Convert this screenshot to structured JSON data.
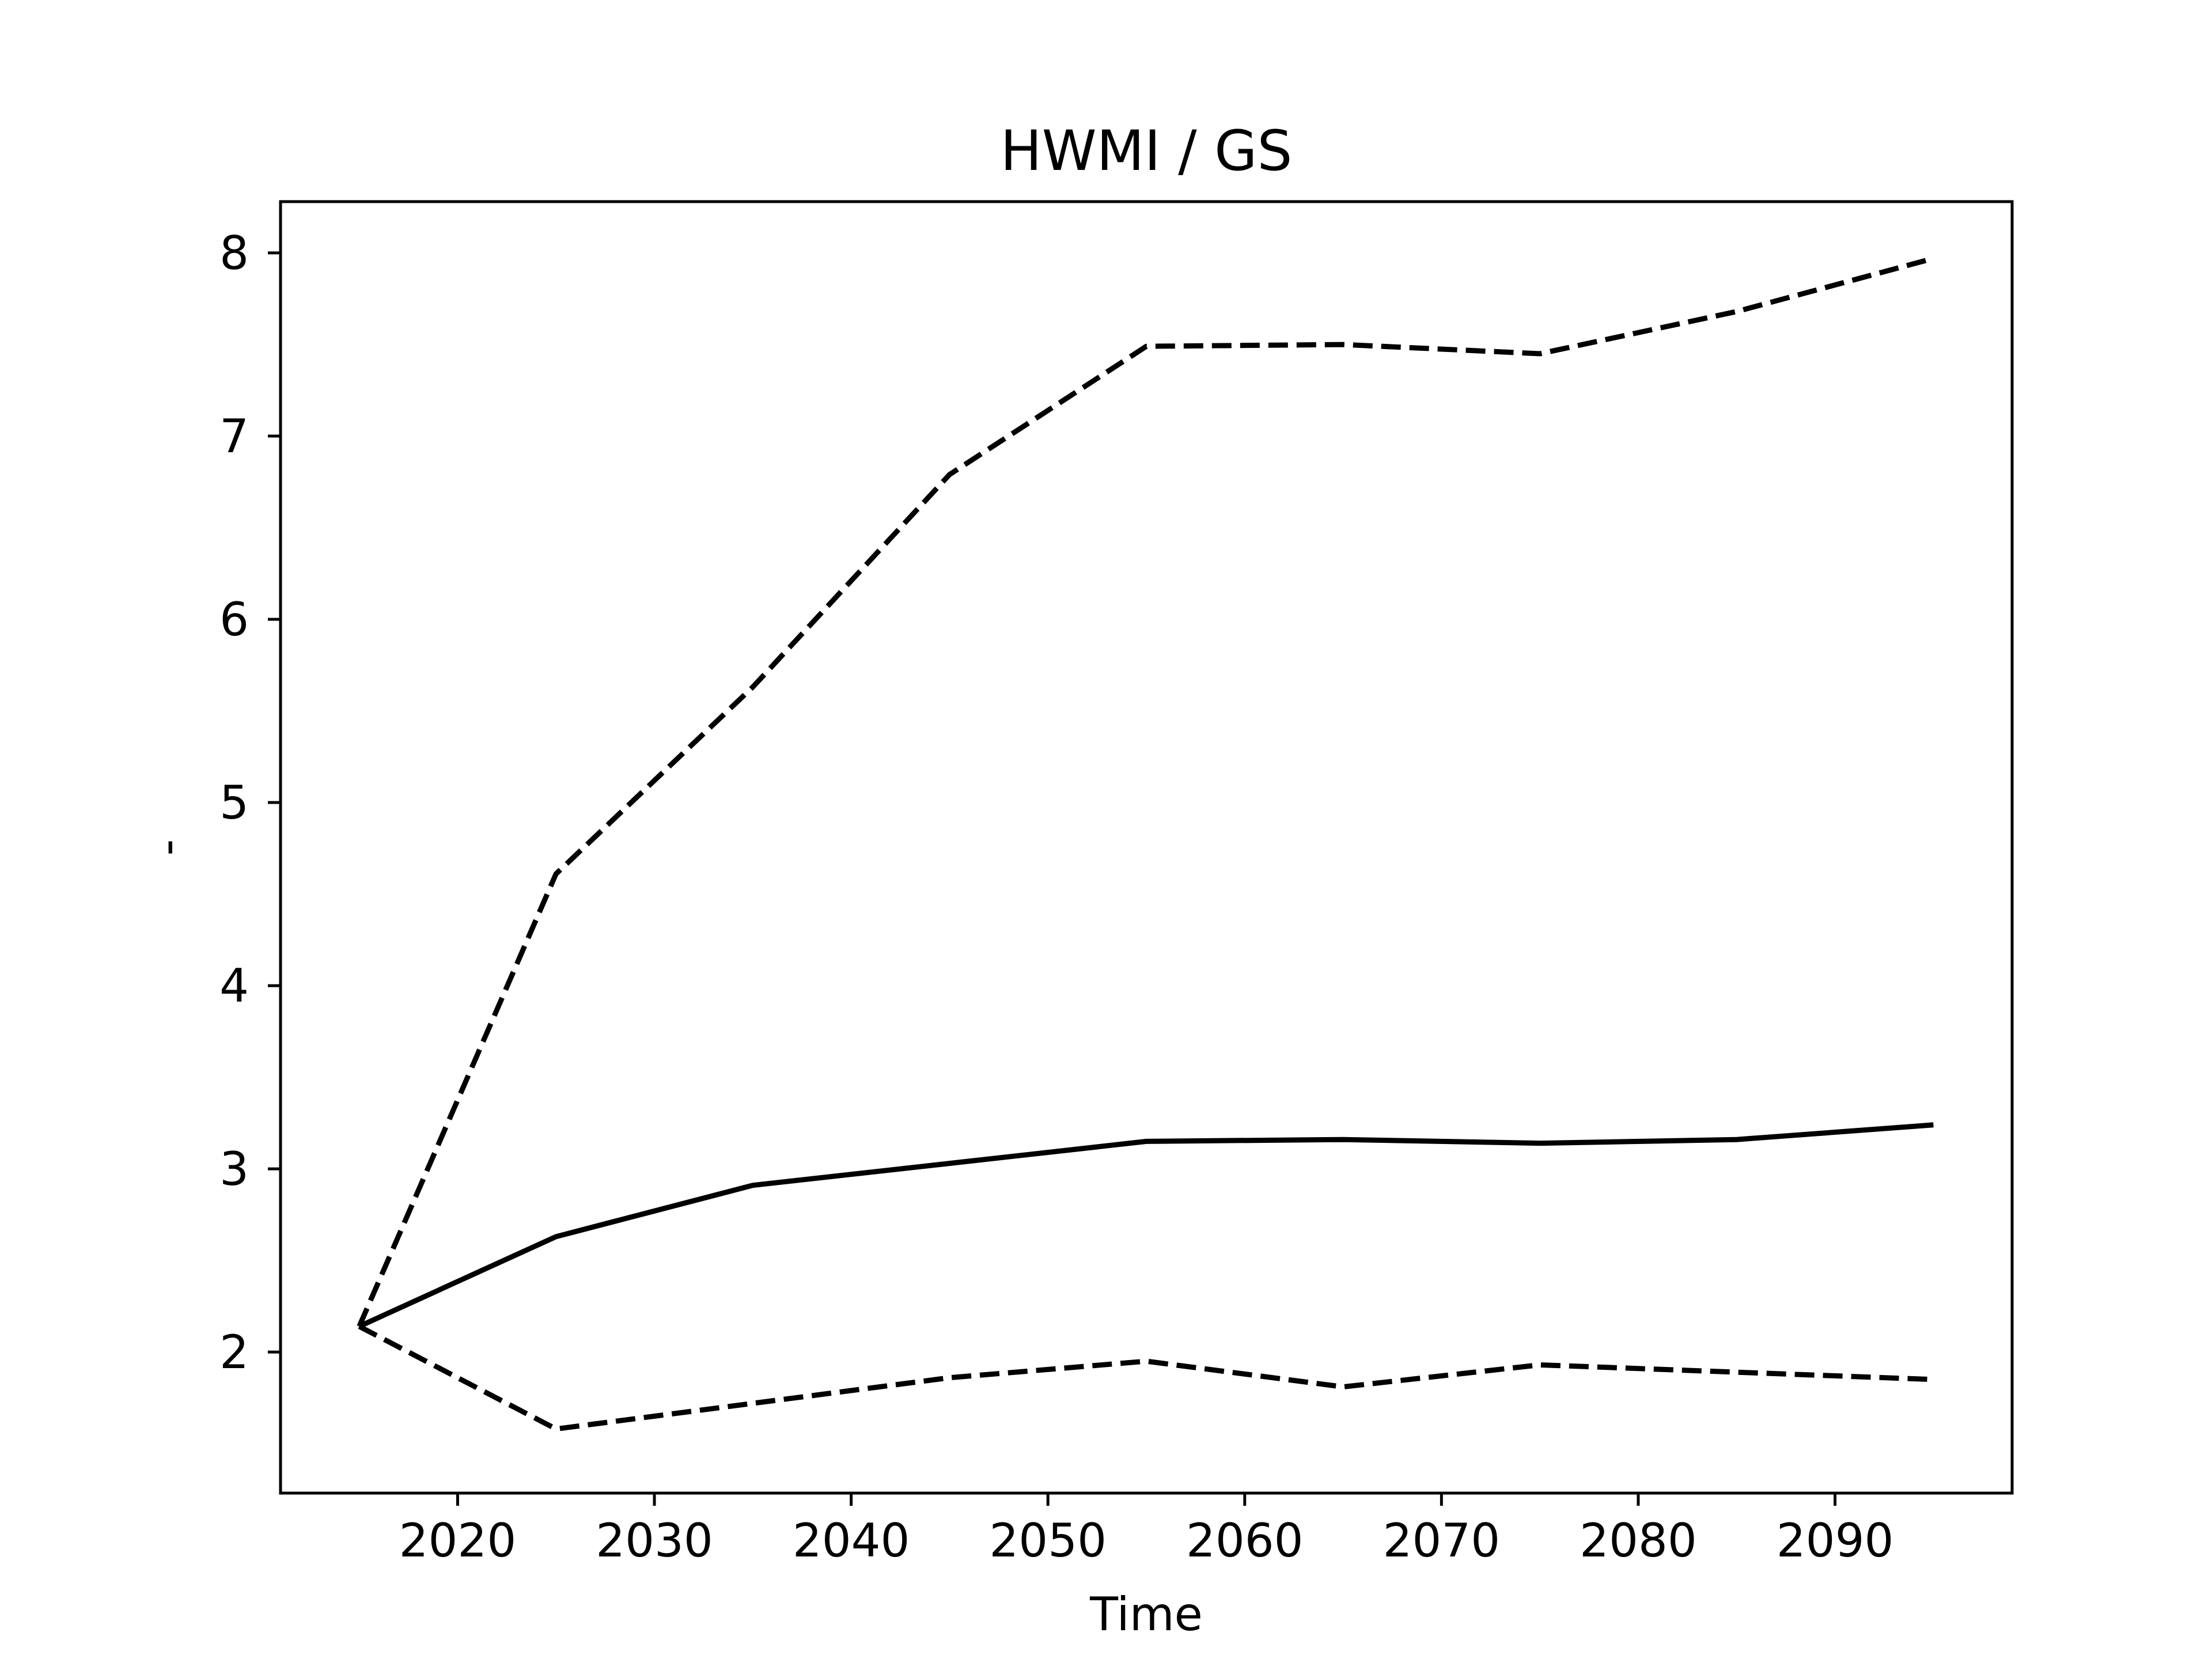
{
  "chart_data": {
    "type": "line",
    "title": "HWMI / GS",
    "xlabel": "Time",
    "ylabel": "-",
    "xlim": [
      2011,
      2099
    ],
    "ylim": [
      1.23,
      8.28
    ],
    "xticks": [
      2020,
      2030,
      2040,
      2050,
      2060,
      2070,
      2080,
      2090
    ],
    "yticks": [
      2,
      3,
      4,
      5,
      6,
      7,
      8
    ],
    "grid": false,
    "legend": "none",
    "x": [
      2015,
      2025,
      2035,
      2045,
      2055,
      2065,
      2075,
      2085,
      2095
    ],
    "series": [
      {
        "style": "solid",
        "color": "#000000",
        "values": [
          2.14,
          2.63,
          2.91,
          3.03,
          3.15,
          3.16,
          3.14,
          3.16,
          3.24
        ]
      },
      {
        "style": "dashed",
        "color": "#000000",
        "values": [
          2.14,
          4.61,
          5.63,
          6.79,
          7.49,
          7.5,
          7.45,
          7.68,
          7.97
        ]
      },
      {
        "style": "dashed",
        "color": "#000000",
        "values": [
          2.14,
          1.58,
          1.72,
          1.86,
          1.95,
          1.81,
          1.93,
          1.89,
          1.85
        ]
      }
    ]
  }
}
